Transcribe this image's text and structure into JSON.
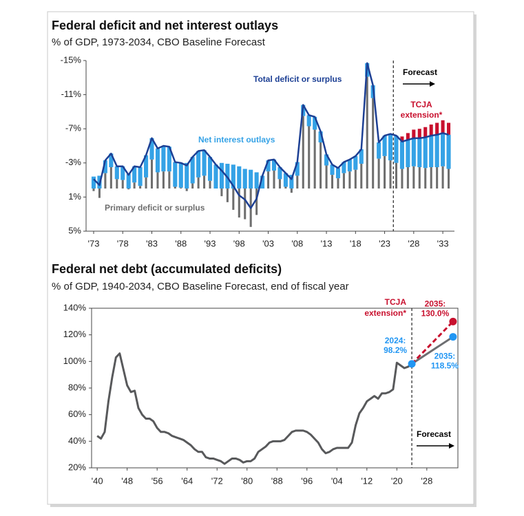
{
  "chart_data": [
    {
      "type": "bar",
      "title": "Federal deficit and net interest outlays",
      "subtitle": "% of GDP, 1973-2034, CBO Baseline Forecast",
      "x": [
        1973,
        1974,
        1975,
        1976,
        1977,
        1978,
        1979,
        1980,
        1981,
        1982,
        1983,
        1984,
        1985,
        1986,
        1987,
        1988,
        1989,
        1990,
        1991,
        1992,
        1993,
        1994,
        1995,
        1996,
        1997,
        1998,
        1999,
        2000,
        2001,
        2002,
        2003,
        2004,
        2005,
        2006,
        2007,
        2008,
        2009,
        2010,
        2011,
        2012,
        2013,
        2014,
        2015,
        2016,
        2017,
        2018,
        2019,
        2020,
        2021,
        2022,
        2023,
        2024,
        2025,
        2026,
        2027,
        2028,
        2029,
        2030,
        2031,
        2032,
        2033,
        2034
      ],
      "xlim": [
        1971.7,
        2035
      ],
      "xticks": [
        {
          "value": 1973,
          "label": "'73"
        },
        {
          "value": 1978,
          "label": "'78"
        },
        {
          "value": 1983,
          "label": "'83"
        },
        {
          "value": 1988,
          "label": "'88"
        },
        {
          "value": 1993,
          "label": "'93"
        },
        {
          "value": 1998,
          "label": "'98"
        },
        {
          "value": 2003,
          "label": "'03"
        },
        {
          "value": 2008,
          "label": "'08"
        },
        {
          "value": 2013,
          "label": "'13"
        },
        {
          "value": 2018,
          "label": "'18"
        },
        {
          "value": 2023,
          "label": "'23"
        },
        {
          "value": 2028,
          "label": "'28"
        },
        {
          "value": 2033,
          "label": "'33"
        }
      ],
      "ylim": [
        -15,
        5
      ],
      "y_inverted": true,
      "yticks": [
        {
          "value": -15,
          "label": "-15%"
        },
        {
          "value": -11,
          "label": "-11%"
        },
        {
          "value": -7,
          "label": "-7%"
        },
        {
          "value": -3,
          "label": "-3%"
        },
        {
          "value": 1,
          "label": "1%"
        },
        {
          "value": 5,
          "label": "5%"
        }
      ],
      "series": [
        {
          "name": "Total deficit or surplus",
          "type": "line",
          "color": "#1c3f94",
          "values": [
            -1.1,
            -0.4,
            -3.3,
            -4.1,
            -2.6,
            -2.6,
            -1.6,
            -2.6,
            -2.5,
            -3.9,
            -5.9,
            -4.7,
            -5.0,
            -4.9,
            -3.1,
            -3.0,
            -2.7,
            -3.7,
            -4.4,
            -4.5,
            -3.7,
            -2.8,
            -2.1,
            -1.3,
            -0.3,
            0.8,
            1.3,
            2.3,
            1.2,
            -1.5,
            -3.3,
            -3.4,
            -2.5,
            -1.8,
            -1.1,
            -3.1,
            -9.8,
            -8.6,
            -8.4,
            -6.7,
            -4.0,
            -2.8,
            -2.4,
            -3.1,
            -3.4,
            -3.8,
            -4.6,
            -14.7,
            -12.1,
            -5.4,
            -6.2,
            -6.4,
            -6.2,
            -5.5,
            -5.7,
            -5.9,
            -5.9,
            -6.0,
            -6.2,
            -6.3,
            -6.5,
            -6.3
          ]
        },
        {
          "name": "Net interest outlays",
          "type": "bar",
          "color": "#35a2e6",
          "values": [
            -1.4,
            -1.5,
            -1.5,
            -1.6,
            -1.5,
            -1.6,
            -1.7,
            -1.9,
            -2.2,
            -2.6,
            -2.5,
            -2.8,
            -3.0,
            -2.9,
            -2.9,
            -2.9,
            -3.0,
            -3.1,
            -3.1,
            -3.0,
            -2.8,
            -2.8,
            -3.0,
            -2.9,
            -2.8,
            -2.6,
            -2.3,
            -2.2,
            -1.9,
            -1.5,
            -1.3,
            -1.3,
            -1.4,
            -1.6,
            -1.6,
            -1.6,
            -1.3,
            -1.3,
            -1.5,
            -1.3,
            -1.3,
            -1.2,
            -1.2,
            -1.3,
            -1.4,
            -1.6,
            -1.7,
            -1.6,
            -1.5,
            -1.9,
            -2.4,
            -3.1,
            -3.2,
            -3.2,
            -3.2,
            -3.3,
            -3.4,
            -3.6,
            -3.7,
            -3.8,
            -3.9,
            -4.0
          ]
        },
        {
          "name": "Primary deficit or surplus",
          "type": "bar",
          "color": "#6e6e6e",
          "values": [
            0.3,
            1.1,
            -1.8,
            -2.5,
            -1.1,
            -1.0,
            0.1,
            -0.7,
            -0.3,
            -1.3,
            -3.4,
            -1.9,
            -2.0,
            -2.0,
            -0.2,
            -0.1,
            0.3,
            -0.6,
            -1.3,
            -1.5,
            -0.9,
            0,
            0.9,
            1.6,
            2.5,
            3.4,
            3.6,
            4.5,
            3.1,
            0,
            -2.0,
            -2.1,
            -1.1,
            -0.2,
            0.5,
            -1.5,
            -8.5,
            -7.3,
            -6.9,
            -5.4,
            -2.7,
            -1.6,
            -1.2,
            -1.8,
            -2.0,
            -2.2,
            -2.9,
            -13.1,
            -10.6,
            -3.5,
            -3.8,
            -3.3,
            -3.0,
            -2.3,
            -2.5,
            -2.6,
            -2.5,
            -2.4,
            -2.5,
            -2.5,
            -2.6,
            -2.3
          ]
        },
        {
          "label": [
            "TCJA",
            "extension*"
          ],
          "type": "bar",
          "color": "#c8102e",
          "x": [
            2026,
            2027,
            2028,
            2029,
            2030,
            2031,
            2032,
            2033,
            2034
          ],
          "values": [
            -0.6,
            -0.8,
            -1.0,
            -1.1,
            -1.2,
            -1.3,
            -1.4,
            -1.5,
            -1.4
          ]
        }
      ],
      "forecast_label": "Forecast",
      "forecast_line_x": 2024.5
    },
    {
      "type": "line",
      "title": "Federal net debt (accumulated deficits)",
      "subtitle": "% of GDP, 1940-2034, CBO Baseline Forecast, end of fiscal year",
      "x": [
        1940,
        1941,
        1942,
        1943,
        1944,
        1945,
        1946,
        1947,
        1948,
        1949,
        1950,
        1951,
        1952,
        1953,
        1954,
        1955,
        1956,
        1957,
        1958,
        1959,
        1960,
        1961,
        1962,
        1963,
        1964,
        1965,
        1966,
        1967,
        1968,
        1969,
        1970,
        1971,
        1972,
        1973,
        1974,
        1975,
        1976,
        1977,
        1978,
        1979,
        1980,
        1981,
        1982,
        1983,
        1984,
        1985,
        1986,
        1987,
        1988,
        1989,
        1990,
        1991,
        1992,
        1993,
        1994,
        1995,
        1996,
        1997,
        1998,
        1999,
        2000,
        2001,
        2002,
        2003,
        2004,
        2005,
        2006,
        2007,
        2008,
        2009,
        2010,
        2011,
        2012,
        2013,
        2014,
        2015,
        2016,
        2017,
        2018,
        2019,
        2020,
        2021,
        2022,
        2023,
        2024
      ],
      "xlim": [
        1938.5,
        2036.3
      ],
      "xticks": [
        {
          "value": 1940,
          "label": "'40"
        },
        {
          "value": 1948,
          "label": "'48"
        },
        {
          "value": 1956,
          "label": "'56"
        },
        {
          "value": 1964,
          "label": "'64"
        },
        {
          "value": 1972,
          "label": "'72"
        },
        {
          "value": 1980,
          "label": "'80"
        },
        {
          "value": 1988,
          "label": "'88"
        },
        {
          "value": 1996,
          "label": "'96"
        },
        {
          "value": 2004,
          "label": "'04"
        },
        {
          "value": 2012,
          "label": "'12"
        },
        {
          "value": 2020,
          "label": "'20"
        },
        {
          "value": 2028,
          "label": "'28"
        }
      ],
      "ylim": [
        20,
        140
      ],
      "yticks": [
        {
          "value": 20,
          "label": "20%"
        },
        {
          "value": 40,
          "label": "40%"
        },
        {
          "value": 60,
          "label": "60%"
        },
        {
          "value": 80,
          "label": "80%"
        },
        {
          "value": 100,
          "label": "100%"
        },
        {
          "value": 120,
          "label": "120%"
        },
        {
          "value": 140,
          "label": "140%"
        }
      ],
      "series": [
        {
          "color": "#58595b",
          "values": [
            44,
            42,
            47,
            70,
            88,
            103,
            106,
            94,
            82,
            77,
            78,
            65,
            60,
            57,
            57,
            55,
            50,
            47,
            47,
            46,
            44,
            43,
            42,
            41,
            39,
            37,
            34,
            32,
            32,
            28,
            27,
            27,
            26,
            25,
            23,
            25,
            27,
            27,
            26,
            24,
            25,
            25,
            27,
            32,
            34,
            36,
            39,
            40,
            40,
            40,
            41,
            44,
            47,
            48,
            48,
            48,
            47,
            45,
            42,
            39,
            34,
            31,
            32,
            34,
            35,
            35,
            35,
            35,
            39,
            52,
            61,
            65,
            70,
            72,
            74,
            72,
            76,
            76,
            77,
            79,
            99,
            97,
            95,
            96,
            98.2
          ]
        },
        {
          "color": "#6d6e71",
          "dot_color": "#2196f3",
          "label_color": "#2196f3",
          "x": [
            2024,
            2035
          ],
          "values": [
            98.2,
            118.5
          ],
          "point_labels": [
            [
              "2024:",
              "98.2%"
            ],
            [
              "2035:",
              "118.5%"
            ]
          ]
        },
        {
          "color": "#c8102e",
          "dashed": true,
          "dot_color": "#c8102e",
          "label_color": "#c8102e",
          "label": [
            "TCJA",
            "extension*"
          ],
          "x": [
            2024,
            2035
          ],
          "values": [
            98.2,
            130.0
          ],
          "point_labels": [
            null,
            [
              "2035:",
              "130.0%"
            ]
          ]
        }
      ],
      "forecast_label": "Forecast",
      "forecast_line_x": 2024
    }
  ]
}
